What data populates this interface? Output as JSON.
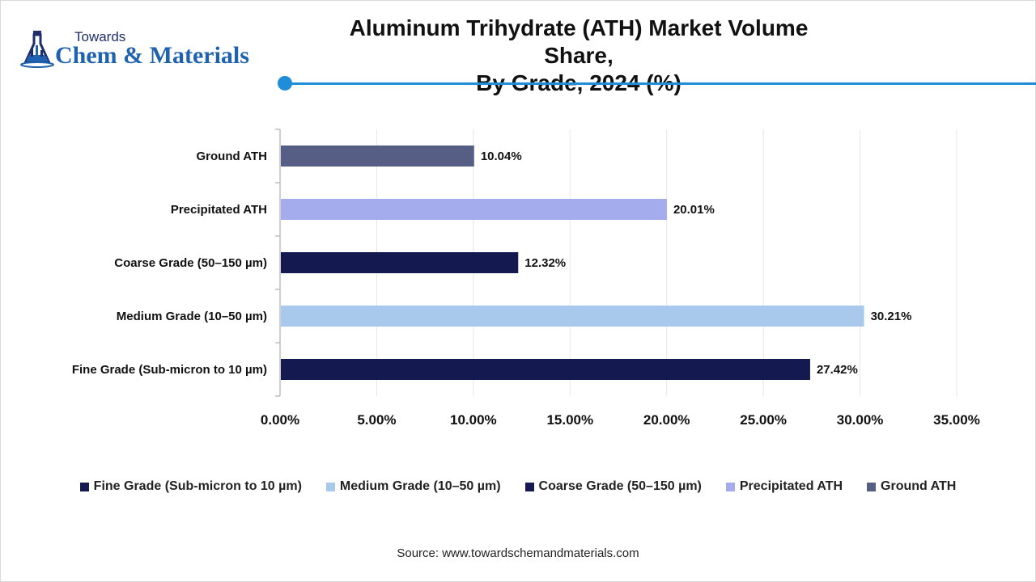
{
  "brand": {
    "top": "Towards",
    "main": "Chem & Materials"
  },
  "colors": {
    "accent": "#1f8ed6",
    "brand_blue": "#1e62b0",
    "brand_navy": "#1f2d6b"
  },
  "chart_data": {
    "type": "bar",
    "orientation": "horizontal",
    "title": "Aluminum Trihydrate (ATH) Market Volume Share,",
    "subtitle": "By Grade, 2024 (%)",
    "categories": [
      "Fine Grade (Sub-micron to 10 µm)",
      "Medium Grade (10–50 µm)",
      "Coarse Grade (50–150 µm)",
      "Precipitated ATH",
      "Ground ATH"
    ],
    "values": [
      27.42,
      30.21,
      12.32,
      20.01,
      10.04
    ],
    "value_labels": [
      "27.42%",
      "30.21%",
      "12.32%",
      "20.01%",
      "10.04%"
    ],
    "colors": [
      "#141a4f",
      "#a9c9ec",
      "#141a4f",
      "#a5acee",
      "#575e86"
    ],
    "xlim": [
      0,
      35
    ],
    "xticks": [
      0,
      5,
      10,
      15,
      20,
      25,
      30,
      35
    ],
    "xtick_labels": [
      "0.00%",
      "5.00%",
      "10.00%",
      "15.00%",
      "20.00%",
      "25.00%",
      "30.00%",
      "35.00%"
    ],
    "grid": "vertical",
    "legend": "bottom",
    "xlabel": "",
    "ylabel": ""
  },
  "source": "Source: www.towardschemandmaterials.com"
}
